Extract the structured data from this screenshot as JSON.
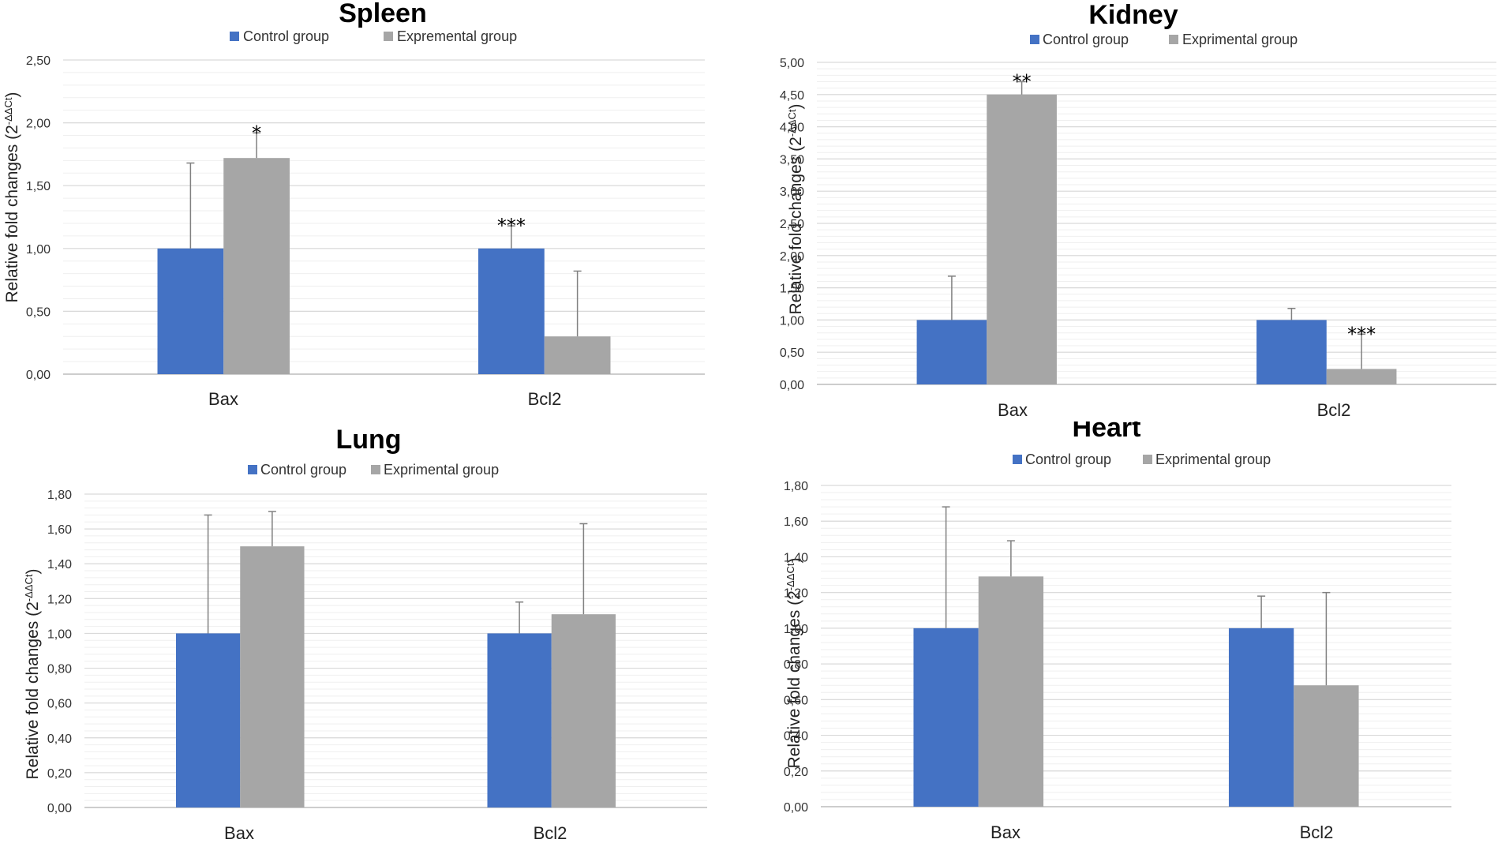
{
  "colors": {
    "control": "#4472C4",
    "experimental": "#A6A6A6",
    "grid": "#D9D9D9",
    "errorbar": "#808080"
  },
  "chart_data": [
    {
      "type": "bar",
      "title": "Spleen",
      "ylabel_main": "Relative fold changes (2",
      "ylabel_sup": "-ΔΔCt",
      "ylabel_end": ")",
      "ylim": [
        0,
        2.5
      ],
      "yticks": [
        0,
        0.5,
        1,
        1.5,
        2,
        2.5
      ],
      "ytick_labels": [
        "0,00",
        "0,50",
        "1,00",
        "1,50",
        "2,00",
        "2,50"
      ],
      "minor_step": 0.1,
      "categories": [
        "Bax",
        "Bcl2"
      ],
      "series": [
        {
          "name": "Control group",
          "values": [
            1.0,
            1.0
          ],
          "errors": [
            0.68,
            0.18
          ],
          "significance": [
            "",
            "***"
          ]
        },
        {
          "name": "Expremental group",
          "values": [
            1.72,
            0.3
          ],
          "errors": [
            0.2,
            0.52
          ],
          "significance": [
            "*",
            ""
          ]
        }
      ]
    },
    {
      "type": "bar",
      "title": "Kidney",
      "ylabel_main": "Relative fold changes (2",
      "ylabel_sup": "-ΔΔCt",
      "ylabel_end": ")",
      "ylim": [
        0,
        5
      ],
      "yticks": [
        0,
        0.5,
        1,
        1.5,
        2,
        2.5,
        3,
        3.5,
        4,
        4.5,
        5
      ],
      "ytick_labels": [
        "0,00",
        "0,50",
        "1,00",
        "1,50",
        "2,00",
        "2,50",
        "3,00",
        "3,50",
        "4,00",
        "4,50",
        "5,00"
      ],
      "minor_step": 0.1,
      "categories": [
        "Bax",
        "Bcl2"
      ],
      "series": [
        {
          "name": "Control group",
          "values": [
            1.0,
            1.0
          ],
          "errors": [
            0.68,
            0.18
          ],
          "significance": [
            "",
            ""
          ]
        },
        {
          "name": "Exprimental group",
          "values": [
            4.5,
            0.24
          ],
          "errors": [
            0.2,
            0.54
          ],
          "significance": [
            "**",
            "***"
          ]
        }
      ]
    },
    {
      "type": "bar",
      "title": "Lung",
      "ylabel_main": "Relative fold changes (2",
      "ylabel_sup": "-ΔΔCt",
      "ylabel_end": ")",
      "ylim": [
        0,
        1.8
      ],
      "yticks": [
        0,
        0.2,
        0.4,
        0.6,
        0.8,
        1.0,
        1.2,
        1.4,
        1.6,
        1.8
      ],
      "ytick_labels": [
        "0,00",
        "0,20",
        "0,40",
        "0,60",
        "0,80",
        "1,00",
        "1,20",
        "1,40",
        "1,60",
        "1,80"
      ],
      "minor_step": 0.04,
      "categories": [
        "Bax",
        "Bcl2"
      ],
      "series": [
        {
          "name": "Control group",
          "values": [
            1.0,
            1.0
          ],
          "errors": [
            0.68,
            0.18
          ],
          "significance": [
            "",
            ""
          ]
        },
        {
          "name": "Exprimental group",
          "values": [
            1.5,
            1.11
          ],
          "errors": [
            0.2,
            0.52
          ],
          "significance": [
            "",
            ""
          ]
        }
      ]
    },
    {
      "type": "bar",
      "title": "Heart",
      "ylabel_main": "Relative fold changes (2",
      "ylabel_sup": "-ΔΔCt",
      "ylabel_end": ")",
      "ylim": [
        0,
        1.8
      ],
      "yticks": [
        0,
        0.2,
        0.4,
        0.6,
        0.8,
        1.0,
        1.2,
        1.4,
        1.6,
        1.8
      ],
      "ytick_labels": [
        "0,00",
        "0,20",
        "0,40",
        "0,60",
        "0,80",
        "1,00",
        "1,20",
        "1,40",
        "1,60",
        "1,80"
      ],
      "minor_step": 0.04,
      "categories": [
        "Bax",
        "Bcl2"
      ],
      "series": [
        {
          "name": "Control group",
          "values": [
            1.0,
            1.0
          ],
          "errors": [
            0.68,
            0.18
          ],
          "significance": [
            "",
            ""
          ]
        },
        {
          "name": "Exprimental group",
          "values": [
            1.29,
            0.68
          ],
          "errors": [
            0.2,
            0.52
          ],
          "significance": [
            "",
            ""
          ]
        }
      ]
    }
  ]
}
